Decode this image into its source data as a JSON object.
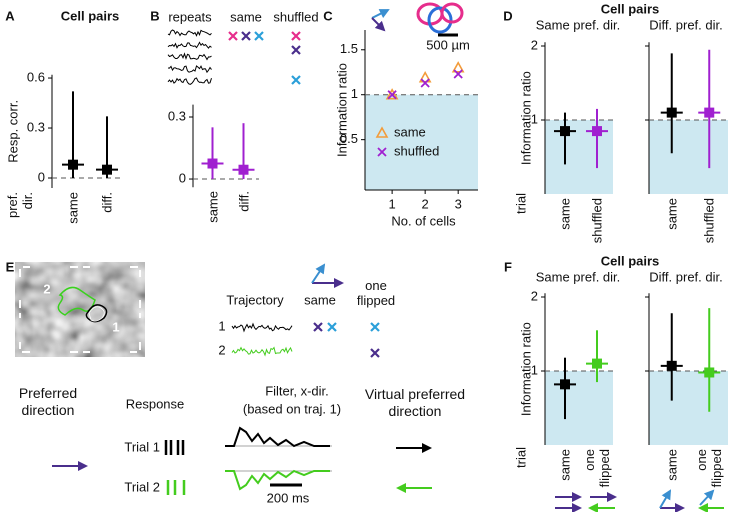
{
  "panel_labels": [
    "A",
    "B",
    "C",
    "D",
    "E",
    "F"
  ],
  "group_titles": [
    "Cell pairs",
    "Cell pairs"
  ],
  "panel_b_legend": {
    "traces_label": "repeats",
    "same": "same",
    "shuffled": "shuffled"
  },
  "panel_c_scale": "500 µm",
  "panel_e": {
    "image_labels": [
      "2",
      "1"
    ],
    "trajectory": "Trajectory",
    "same": "same",
    "one_flipped": "one flipped",
    "rows": [
      "1",
      "2"
    ],
    "preferred_direction": "Preferred direction",
    "response": "Response",
    "filter": "Filter, x-dir.",
    "filter_note": "(based on traj. 1)",
    "virtual": "Virtual preferred direction",
    "trials": [
      "Trial 1",
      "Trial 2"
    ],
    "scale": "200 ms"
  },
  "chart_data": [
    {
      "type": "box",
      "title": "Cell pairs",
      "ylabel": "Resp. corr.",
      "row_label": "pref. dir.",
      "categories": [
        "same",
        "diff."
      ],
      "values": [
        0.08,
        0.05
      ],
      "lower": [
        0,
        0
      ],
      "upper": [
        0.52,
        0.37
      ],
      "colors": [
        "#000000",
        "#000000"
      ],
      "ylim": [
        -0.06,
        0.62
      ],
      "yticks": [
        0,
        0.3,
        0.6
      ],
      "reference": 0
    },
    {
      "type": "box",
      "categories": [
        "same",
        "diff."
      ],
      "values": [
        0.075,
        0.045
      ],
      "lower": [
        0,
        0
      ],
      "upper": [
        0.25,
        0.27
      ],
      "colors": [
        "#a020d0",
        "#a020d0"
      ],
      "ylim": [
        -0.04,
        0.36
      ],
      "yticks": [
        0,
        0.3
      ],
      "reference": 0
    },
    {
      "type": "scatter",
      "ylabel": "Information ratio",
      "xlabel": "No. of cells",
      "x": [
        1,
        2,
        3
      ],
      "series": [
        {
          "name": "same",
          "color": "#f39c3a",
          "marker": "triangle",
          "values": [
            1,
            1.19,
            1.3
          ]
        },
        {
          "name": "shuffled",
          "color": "#a020d0",
          "marker": "x",
          "values": [
            1,
            1.13,
            1.23
          ]
        }
      ],
      "xlim": [
        0.3,
        3.6
      ],
      "ylim": [
        -0.06,
        1.72
      ],
      "xticks": [
        1,
        2,
        3
      ],
      "yticks": [
        0.5,
        1,
        1.5
      ],
      "reference": 1,
      "shade_below_reference": true,
      "shade_color": "#cde8f1"
    },
    {
      "type": "box",
      "title": "Same pref. dir.",
      "ylabel": "Information ratio",
      "row_label": "trial",
      "categories": [
        "same",
        "shuffled"
      ],
      "values": [
        0.85,
        0.85
      ],
      "lower": [
        0.4,
        0.35
      ],
      "upper": [
        1.1,
        1.15
      ],
      "colors": [
        "#000000",
        "#a020d0"
      ],
      "ylim": [
        0,
        2.05
      ],
      "yticks": [
        1,
        2
      ],
      "reference": 1,
      "shade_below_reference": true,
      "shade_color": "#cde8f1"
    },
    {
      "type": "box",
      "title": "Diff. pref. dir.",
      "categories": [
        "same",
        "shuffled"
      ],
      "values": [
        1.1,
        1.1
      ],
      "lower": [
        0.55,
        0.35
      ],
      "upper": [
        1.9,
        1.95
      ],
      "colors": [
        "#000000",
        "#a020d0"
      ],
      "ylim": [
        0,
        2.05
      ],
      "yticks": [
        1,
        2
      ],
      "tick_labels": false,
      "reference": 1,
      "shade_below_reference": true,
      "shade_color": "#cde8f1"
    },
    {
      "type": "box",
      "title": "Same pref. dir.",
      "ylabel": "Information ratio",
      "row_label": "trial",
      "categories": [
        "same",
        "one flipped"
      ],
      "values": [
        0.82,
        1.1
      ],
      "lower": [
        0.35,
        0.85
      ],
      "upper": [
        1.18,
        1.55
      ],
      "colors": [
        "#000000",
        "#44cc1e"
      ],
      "ylim": [
        0,
        2.05
      ],
      "yticks": [
        1,
        2
      ],
      "reference": 1,
      "shade_below_reference": true,
      "shade_color": "#cde8f1"
    },
    {
      "type": "box",
      "title": "Diff. pref. dir.",
      "categories": [
        "same",
        "one flipped"
      ],
      "values": [
        1.07,
        0.98
      ],
      "lower": [
        0.6,
        0.45
      ],
      "upper": [
        1.78,
        1.85
      ],
      "colors": [
        "#000000",
        "#44cc1e"
      ],
      "ylim": [
        0,
        2.05
      ],
      "yticks": [
        1,
        2
      ],
      "tick_labels": false,
      "reference": 1,
      "shade_below_reference": true,
      "shade_color": "#cde8f1"
    }
  ]
}
